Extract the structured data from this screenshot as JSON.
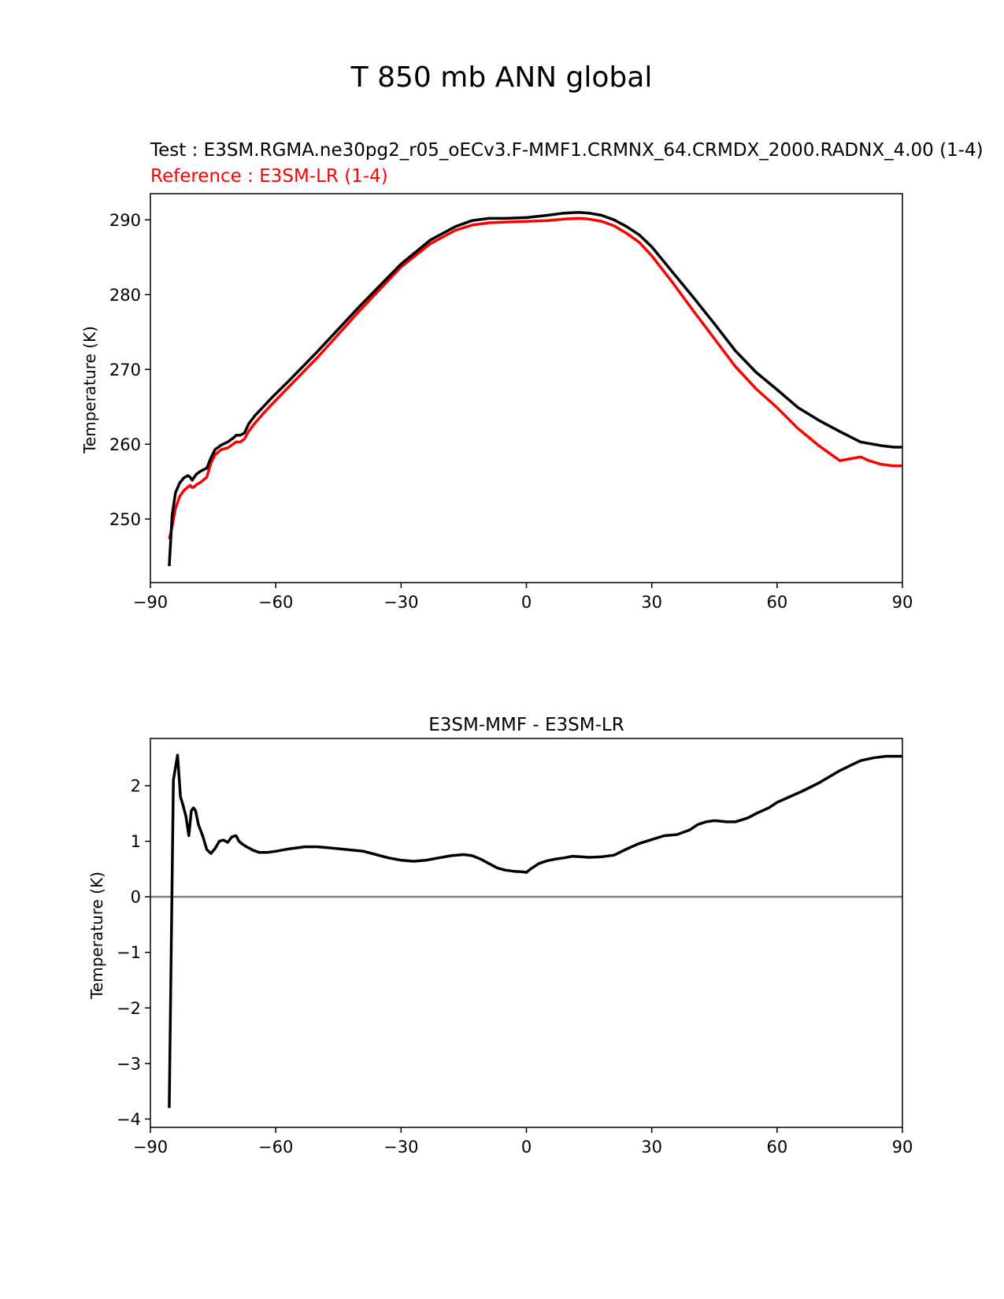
{
  "figure": {
    "title": "T 850 mb ANN global"
  },
  "colors": {
    "test": "#000000",
    "reference": "#ff0000",
    "zero_line": "#808080"
  },
  "chart_data": [
    {
      "type": "line",
      "test_label": "Test : E3SM.RGMA.ne30pg2_r05_oECv3.F-MMF1.CRMNX_64.CRMDX_2000.RADNX_4.00 (1-4)",
      "reference_label": "Reference : E3SM-LR (1-4)",
      "xlabel": "",
      "ylabel": "Temperature (K)",
      "xlim": [
        -90,
        90
      ],
      "ylim": [
        241.5,
        293.5
      ],
      "xticks": [
        -90,
        -60,
        -30,
        0,
        30,
        60,
        90
      ],
      "xtick_labels": [
        "−90",
        "−60",
        "−30",
        "0",
        "30",
        "60",
        "90"
      ],
      "yticks": [
        250,
        260,
        270,
        280,
        290
      ],
      "ytick_labels": [
        "250",
        "260",
        "270",
        "280",
        "290"
      ],
      "series": [
        {
          "role": "test",
          "x": [
            -85.5,
            -84.8,
            -84,
            -83,
            -82,
            -81,
            -80.5,
            -80,
            -79.5,
            -79,
            -78,
            -76.5,
            -75.5,
            -74.5,
            -73,
            -71.5,
            -70,
            -69.5,
            -68.5,
            -67.5,
            -66.5,
            -65,
            -63,
            -61,
            -57,
            -50,
            -40,
            -30,
            -23,
            -17,
            -13,
            -9,
            -5,
            0,
            5,
            9,
            12.5,
            15,
            18,
            21,
            24,
            27,
            30,
            35,
            40,
            45,
            50,
            55,
            60,
            65,
            70,
            75,
            80,
            82,
            85,
            88,
            90
          ],
          "y": [
            243.7,
            250.5,
            253.5,
            254.8,
            255.5,
            255.8,
            255.6,
            255.2,
            255.6,
            256,
            256.4,
            256.8,
            258.2,
            259.3,
            259.9,
            260.3,
            260.9,
            261.2,
            261.2,
            261.5,
            262.7,
            263.8,
            265,
            266.2,
            268.4,
            272.4,
            278.4,
            284.1,
            287.3,
            289.1,
            289.9,
            290.2,
            290.2,
            290.3,
            290.6,
            290.9,
            291,
            290.9,
            290.6,
            290,
            289.1,
            288,
            286.4,
            283,
            279.6,
            276.1,
            272.5,
            269.6,
            267.3,
            264.9,
            263.2,
            261.7,
            260.3,
            260.1,
            259.8,
            259.6,
            259.6
          ]
        },
        {
          "role": "reference",
          "x": [
            -85.5,
            -85,
            -84,
            -83,
            -82,
            -81,
            -80.5,
            -80,
            -79.5,
            -79,
            -78,
            -76.5,
            -75.5,
            -74.5,
            -73,
            -71.5,
            -70,
            -69.5,
            -68.5,
            -67.5,
            -66.5,
            -65,
            -63,
            -61,
            -57,
            -50,
            -40,
            -30,
            -23,
            -17,
            -13,
            -9,
            -5,
            0,
            5,
            9,
            12.5,
            15,
            18,
            21,
            24,
            27,
            30,
            35,
            40,
            45,
            50,
            55,
            60,
            65,
            70,
            75,
            80,
            82,
            85,
            88,
            90
          ],
          "y": [
            247.3,
            248.4,
            251.4,
            253,
            253.8,
            254.3,
            254.5,
            254.2,
            254.3,
            254.6,
            254.9,
            255.6,
            257.5,
            258.6,
            259.3,
            259.5,
            260.1,
            260.3,
            260.3,
            260.7,
            261.7,
            262.8,
            264.1,
            265.3,
            267.6,
            271.6,
            277.8,
            283.7,
            286.8,
            288.6,
            289.3,
            289.6,
            289.7,
            289.8,
            289.9,
            290.1,
            290.2,
            290.1,
            289.8,
            289.2,
            288.2,
            287,
            285.2,
            281.6,
            277.8,
            274.1,
            270.4,
            267.4,
            264.9,
            262.1,
            259.8,
            257.8,
            258.3,
            257.8,
            257.3,
            257.1,
            257.1
          ]
        }
      ]
    },
    {
      "type": "line",
      "title": "E3SM-MMF - E3SM-LR",
      "xlabel": "",
      "ylabel": "Temperature (K)",
      "xlim": [
        -90,
        90
      ],
      "ylim": [
        -4.15,
        2.85
      ],
      "xticks": [
        -90,
        -60,
        -30,
        0,
        30,
        60,
        90
      ],
      "xtick_labels": [
        "−90",
        "−60",
        "−30",
        "0",
        "30",
        "60",
        "90"
      ],
      "yticks": [
        -4,
        -3,
        -2,
        -1,
        0,
        1,
        2
      ],
      "ytick_labels": [
        "−4",
        "−3",
        "−2",
        "−1",
        "0",
        "1",
        "2"
      ],
      "reference_line": 0,
      "series": [
        {
          "role": "difference",
          "x": [
            -85.5,
            -84.5,
            -83.5,
            -82.8,
            -82.2,
            -81.5,
            -80.8,
            -80.2,
            -79.7,
            -79.2,
            -78.5,
            -77.5,
            -76.5,
            -75.5,
            -74.5,
            -73.5,
            -72.5,
            -71.5,
            -70.5,
            -69.5,
            -68.8,
            -68,
            -67,
            -66.2,
            -65.5,
            -64,
            -62,
            -60,
            -57,
            -53,
            -50,
            -47,
            -43,
            -39,
            -36,
            -33,
            -30,
            -27,
            -24,
            -21,
            -18,
            -15,
            -13,
            -11,
            -9,
            -7,
            -5,
            -3,
            -1,
            0,
            1,
            3,
            5,
            7,
            9,
            11,
            13,
            15,
            18,
            21,
            24,
            27,
            30,
            33,
            36,
            39,
            41,
            43,
            45,
            48,
            50,
            53,
            55,
            58,
            60,
            63,
            66,
            70,
            75,
            78,
            80,
            83,
            86,
            90
          ],
          "y": [
            -3.8,
            2.1,
            2.55,
            1.8,
            1.65,
            1.45,
            1.1,
            1.55,
            1.6,
            1.55,
            1.3,
            1.1,
            0.85,
            0.78,
            0.87,
            1,
            1.02,
            0.98,
            1.08,
            1.1,
            1,
            0.95,
            0.9,
            0.87,
            0.84,
            0.8,
            0.8,
            0.82,
            0.86,
            0.9,
            0.9,
            0.88,
            0.85,
            0.82,
            0.76,
            0.7,
            0.66,
            0.64,
            0.66,
            0.7,
            0.74,
            0.76,
            0.74,
            0.68,
            0.6,
            0.52,
            0.48,
            0.46,
            0.45,
            0.44,
            0.5,
            0.6,
            0.65,
            0.68,
            0.7,
            0.73,
            0.72,
            0.71,
            0.72,
            0.75,
            0.86,
            0.96,
            1.03,
            1.1,
            1.12,
            1.2,
            1.3,
            1.35,
            1.37,
            1.35,
            1.35,
            1.42,
            1.5,
            1.6,
            1.7,
            1.8,
            1.9,
            2.05,
            2.27,
            2.38,
            2.45,
            2.5,
            2.53,
            2.53
          ]
        }
      ]
    }
  ]
}
